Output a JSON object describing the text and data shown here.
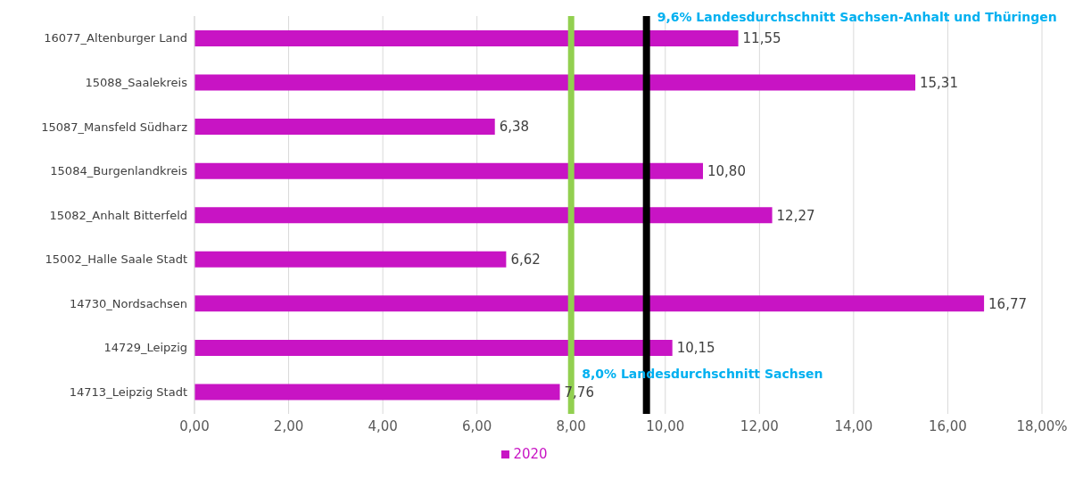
{
  "chart_data": {
    "type": "bar",
    "orientation": "horizontal",
    "categories": [
      "16077_Altenburger Land",
      "15088_Saalekreis",
      "15087_Mansfeld Südharz",
      "15084_Burgenlandkreis",
      "15082_Anhalt Bitterfeld",
      "15002_Halle Saale Stadt",
      "14730_Nordsachsen",
      "14729_Leipzig",
      "14713_Leipzig Stadt"
    ],
    "series": [
      {
        "name": "2020",
        "color": "#c814c4",
        "values": [
          11.55,
          15.31,
          6.38,
          10.8,
          12.27,
          6.62,
          16.77,
          10.15,
          7.76
        ],
        "value_labels": [
          "11,55",
          "15,31",
          "6,38",
          "10,80",
          "12,27",
          "6,62",
          "16,77",
          "10,15",
          "7,76"
        ]
      }
    ],
    "xlim": [
      0,
      18
    ],
    "xticks": [
      {
        "value": 0,
        "label": "0,00"
      },
      {
        "value": 2,
        "label": "2,00"
      },
      {
        "value": 4,
        "label": "4,00"
      },
      {
        "value": 6,
        "label": "6,00"
      },
      {
        "value": 8,
        "label": "8,00"
      },
      {
        "value": 10,
        "label": "10,00"
      },
      {
        "value": 12,
        "label": "12,00"
      },
      {
        "value": 14,
        "label": "14,00"
      },
      {
        "value": 16,
        "label": "16,00"
      },
      {
        "value": 18,
        "label": "18,00%"
      }
    ],
    "ref_lines": [
      {
        "axis": "x",
        "value": 9.6,
        "label": "9,6% Landesdurchschnitt Sachsen-Anhalt und Thüringen",
        "color": "#000000"
      },
      {
        "axis": "x",
        "value": 8.0,
        "label": "8,0% Landesdurchschnitt Sachsen",
        "color": "#92d050"
      }
    ],
    "grid": "x",
    "legend": "bottom"
  }
}
